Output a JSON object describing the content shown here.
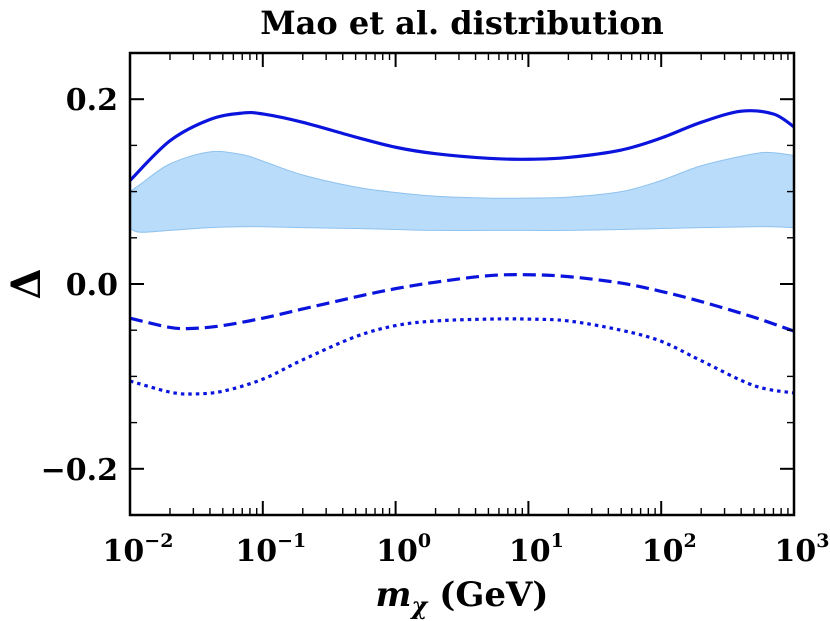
{
  "chart_data": {
    "type": "line",
    "title": "Mao et al. distribution",
    "xlabel": "m_χ (GeV)",
    "xlabel_symbol": "m",
    "xlabel_subscript": "χ",
    "xlabel_unit": "(GeV)",
    "ylabel": "Δ",
    "xscale": "log",
    "xlim": [
      0.01,
      1000
    ],
    "ylim": [
      -0.25,
      0.25
    ],
    "x_ticks": [
      {
        "value": 0.01,
        "base": "10",
        "exp": "−2"
      },
      {
        "value": 0.1,
        "base": "10",
        "exp": "−1"
      },
      {
        "value": 1,
        "base": "10",
        "exp": "0"
      },
      {
        "value": 10,
        "base": "10",
        "exp": "1"
      },
      {
        "value": 100,
        "base": "10",
        "exp": "2"
      },
      {
        "value": 1000,
        "base": "10",
        "exp": "3"
      }
    ],
    "y_ticks": [
      {
        "value": -0.2,
        "label": "−0.2"
      },
      {
        "value": 0.0,
        "label": "0.0"
      },
      {
        "value": 0.2,
        "label": "0.2"
      }
    ],
    "grid": false,
    "series": [
      {
        "name": "solid",
        "style": "solid",
        "color": "#0a14dc",
        "x": [
          0.01,
          0.02,
          0.04,
          0.07,
          0.1,
          0.2,
          0.5,
          1,
          2,
          5,
          10,
          20,
          50,
          100,
          200,
          400,
          700,
          1000
        ],
        "y": [
          0.112,
          0.155,
          0.178,
          0.185,
          0.184,
          0.175,
          0.159,
          0.148,
          0.141,
          0.136,
          0.135,
          0.137,
          0.145,
          0.158,
          0.175,
          0.187,
          0.184,
          0.17
        ]
      },
      {
        "name": "dashed",
        "style": "dashed",
        "color": "#0a14dc",
        "x": [
          0.01,
          0.02,
          0.03,
          0.05,
          0.1,
          0.2,
          0.5,
          1,
          2,
          5,
          10,
          20,
          50,
          100,
          200,
          500,
          1000
        ],
        "y": [
          -0.037,
          -0.047,
          -0.048,
          -0.045,
          -0.037,
          -0.027,
          -0.014,
          -0.005,
          0.002,
          0.009,
          0.01,
          0.008,
          0.001,
          -0.008,
          -0.019,
          -0.036,
          -0.051
        ]
      },
      {
        "name": "dotted",
        "style": "dotted",
        "color": "#0a14dc",
        "x": [
          0.01,
          0.02,
          0.03,
          0.05,
          0.1,
          0.2,
          0.5,
          1,
          2,
          5,
          10,
          20,
          50,
          100,
          200,
          500,
          1000
        ],
        "y": [
          -0.105,
          -0.117,
          -0.119,
          -0.116,
          -0.103,
          -0.082,
          -0.057,
          -0.045,
          -0.04,
          -0.038,
          -0.038,
          -0.04,
          -0.05,
          -0.062,
          -0.083,
          -0.11,
          -0.118
        ]
      }
    ],
    "band": {
      "name": "shaded band",
      "color": "#b8dcfa",
      "edge_color": "#8ec2ee",
      "x": [
        0.01,
        0.012,
        0.02,
        0.04,
        0.07,
        0.1,
        0.2,
        0.5,
        1,
        2,
        5,
        10,
        20,
        50,
        100,
        200,
        500,
        700,
        1000
      ],
      "upper": [
        0.1,
        0.108,
        0.13,
        0.143,
        0.14,
        0.133,
        0.118,
        0.105,
        0.099,
        0.095,
        0.093,
        0.093,
        0.094,
        0.1,
        0.112,
        0.128,
        0.141,
        0.142,
        0.139
      ],
      "lower": [
        0.06,
        0.056,
        0.058,
        0.061,
        0.062,
        0.062,
        0.061,
        0.06,
        0.059,
        0.058,
        0.058,
        0.058,
        0.058,
        0.059,
        0.06,
        0.061,
        0.062,
        0.062,
        0.061
      ]
    }
  }
}
